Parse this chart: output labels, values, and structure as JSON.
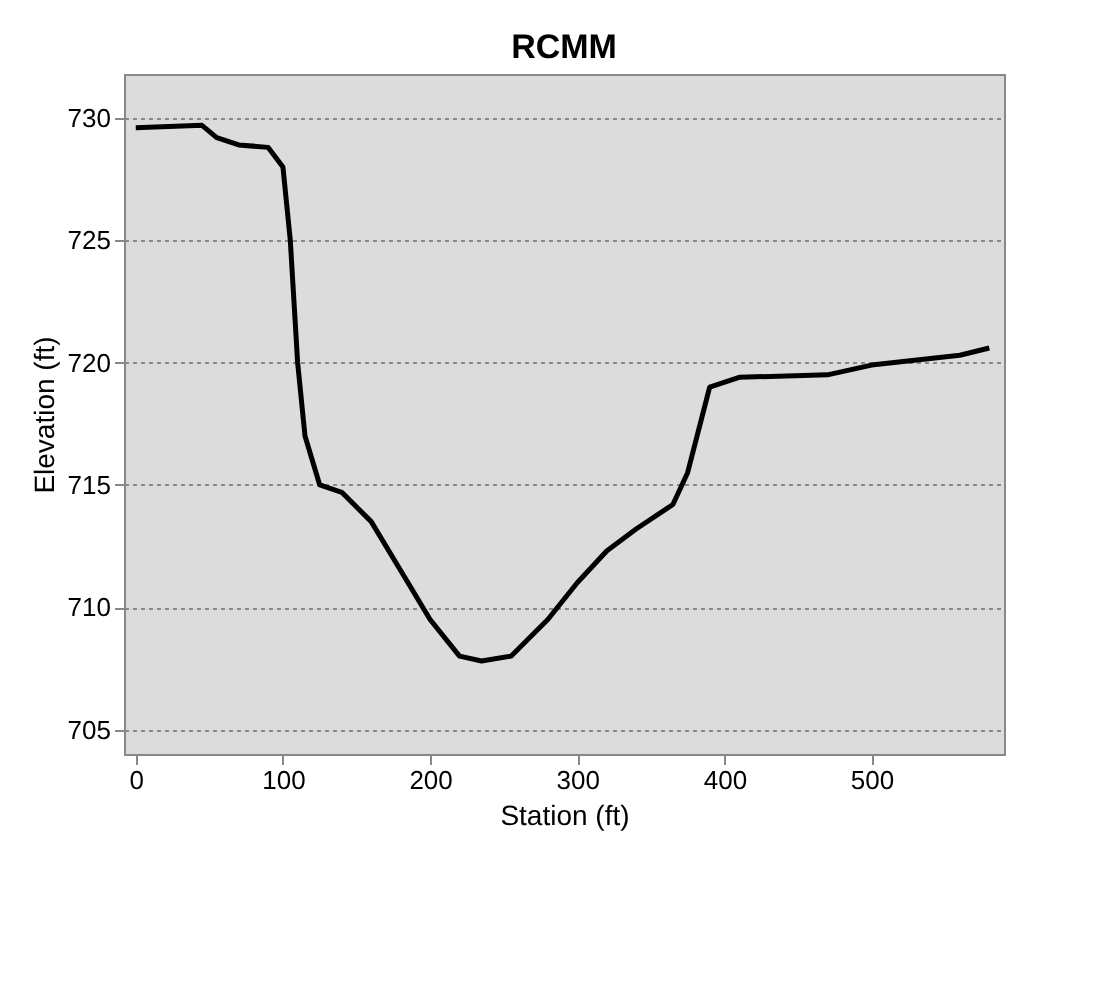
{
  "chart_data": {
    "type": "line",
    "title": "RCMM",
    "xlabel": "Station (ft)",
    "ylabel": "Elevation (ft)",
    "x": [
      0,
      45,
      55,
      70,
      90,
      100,
      105,
      110,
      115,
      125,
      140,
      160,
      180,
      200,
      220,
      235,
      255,
      280,
      300,
      320,
      340,
      365,
      375,
      390,
      410,
      470,
      500,
      560,
      580
    ],
    "series": [
      {
        "color": "#000000",
        "values": [
          729.6,
          729.7,
          729.2,
          728.9,
          728.8,
          728,
          725,
          720,
          717,
          715,
          714.7,
          713.5,
          711.5,
          709.5,
          708,
          707.8,
          708,
          709.5,
          711,
          712.3,
          713.2,
          714.2,
          715.5,
          719,
          719.4,
          719.5,
          719.9,
          720.3,
          720.6
        ]
      }
    ],
    "xlim": [
      -8,
      590
    ],
    "xticks": [
      0,
      100,
      200,
      300,
      400,
      500
    ],
    "ylim": [
      704,
      731.8
    ],
    "yticks": [
      705,
      710,
      715,
      720,
      725,
      730
    ],
    "grid": "y",
    "marker": "none",
    "line_style": "solid"
  }
}
